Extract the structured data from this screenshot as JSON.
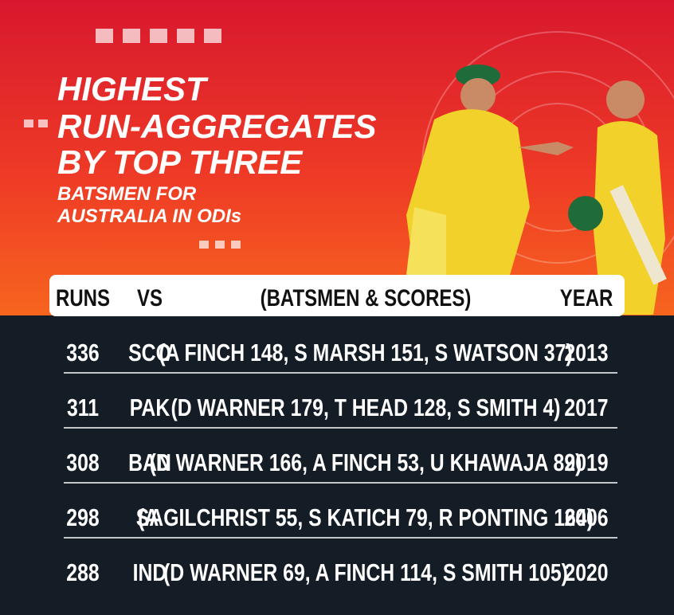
{
  "header": {
    "title": [
      "HIGHEST",
      "RUN-AGGREGATES",
      "BY TOP THREE"
    ],
    "subtitle": [
      "BATSMEN FOR",
      "AUSTRALIA IN ODIs"
    ]
  },
  "table": {
    "columns": [
      "RUNS",
      "VS",
      "(BATSMEN & SCORES)",
      "YEAR"
    ],
    "rows": [
      [
        "336",
        "SCO",
        "(A FINCH 148, S MARSH 151, S WATSON 37)",
        "2013"
      ],
      [
        "311",
        "PAK",
        "(D WARNER 179, T HEAD 128, S SMITH 4)",
        "2017"
      ],
      [
        "308",
        "BAN",
        "(D WARNER 166, A FINCH 53, U KHAWAJA 89)",
        "2019"
      ],
      [
        "298",
        "SA",
        "(A GILCHRIST 55, S KATICH 79, R PONTING 164)",
        "2006"
      ],
      [
        "288",
        "IND",
        "(D WARNER 69, A FINCH 114, S SMITH 105)",
        "2020"
      ]
    ]
  }
}
